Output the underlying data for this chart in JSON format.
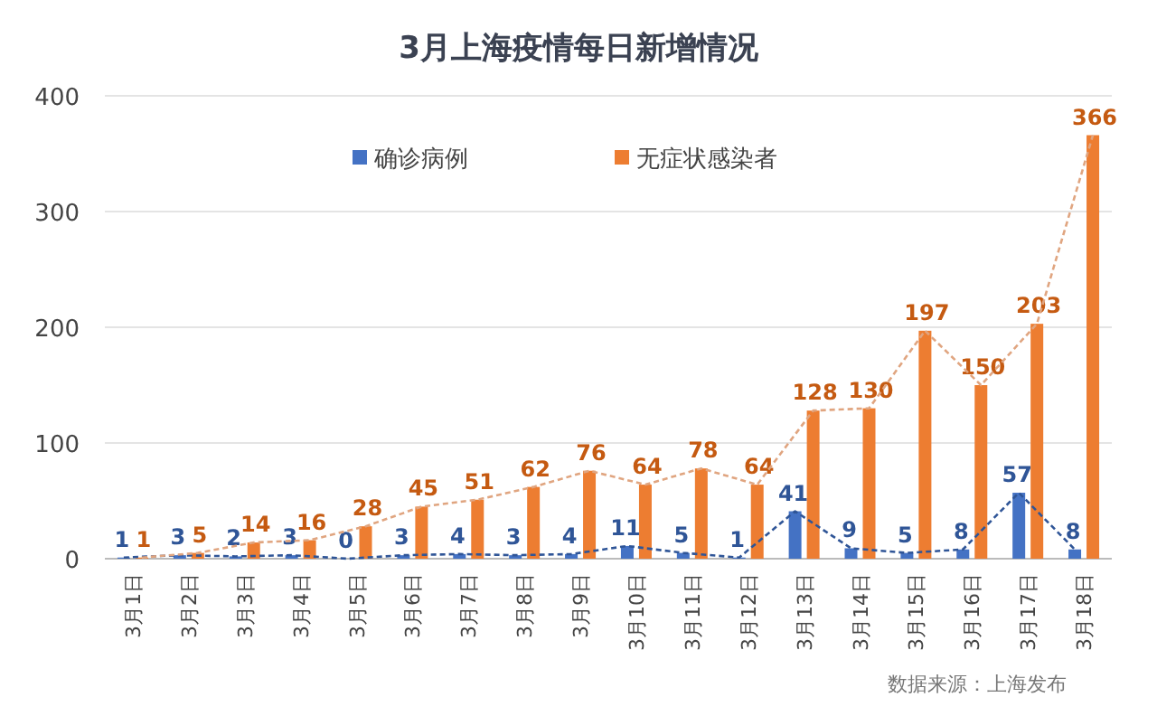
{
  "chart_data": {
    "type": "bar",
    "title": "3月上海疫情每日新增情况",
    "categories": [
      "3月1日",
      "3月2日",
      "3月3日",
      "3月4日",
      "3月5日",
      "3月6日",
      "3月7日",
      "3月8日",
      "3月9日",
      "3月10日",
      "3月11日",
      "3月12日",
      "3月13日",
      "3月14日",
      "3月15日",
      "3月16日",
      "3月17日",
      "3月18日"
    ],
    "series": [
      {
        "name": "确诊病例",
        "color": "#4472c4",
        "values": [
          1,
          3,
          2,
          3,
          0,
          3,
          4,
          3,
          4,
          11,
          5,
          1,
          41,
          9,
          5,
          8,
          57,
          8
        ],
        "value_labels": [
          "1",
          "3",
          "2",
          "3",
          "0",
          "3",
          "4",
          "3",
          "4",
          "11",
          "5",
          "1",
          "41",
          "9",
          "5",
          "8",
          "57",
          "8"
        ]
      },
      {
        "name": "无症状感染者",
        "color": "#ed7d31",
        "values": [
          1,
          5,
          14,
          16,
          28,
          45,
          51,
          62,
          76,
          64,
          78,
          64,
          128,
          130,
          197,
          150,
          203,
          366
        ],
        "value_labels": [
          "1",
          "5",
          "14",
          "16",
          "28",
          "45",
          "51",
          "62",
          "76",
          "64",
          "78",
          "64",
          "128",
          "130",
          "197",
          "150",
          "203",
          "366"
        ]
      },
      {
        "type": "line",
        "color": "#2f5597",
        "line_style": "dashed",
        "values": [
          1,
          3,
          2,
          3,
          0,
          3,
          4,
          3,
          4,
          11,
          5,
          1,
          41,
          9,
          5,
          8,
          57,
          8
        ]
      },
      {
        "type": "line",
        "color": "#e0a580",
        "line_style": "dashed",
        "values": [
          1,
          5,
          14,
          16,
          28,
          45,
          51,
          62,
          76,
          64,
          78,
          64,
          128,
          130,
          197,
          150,
          203,
          366
        ]
      }
    ],
    "ylim": [
      0,
      400
    ],
    "yticks": [
      0,
      100,
      200,
      300,
      400
    ],
    "grid": "y",
    "legend": "top",
    "annotations": [
      "数据来源：上海发布"
    ]
  }
}
